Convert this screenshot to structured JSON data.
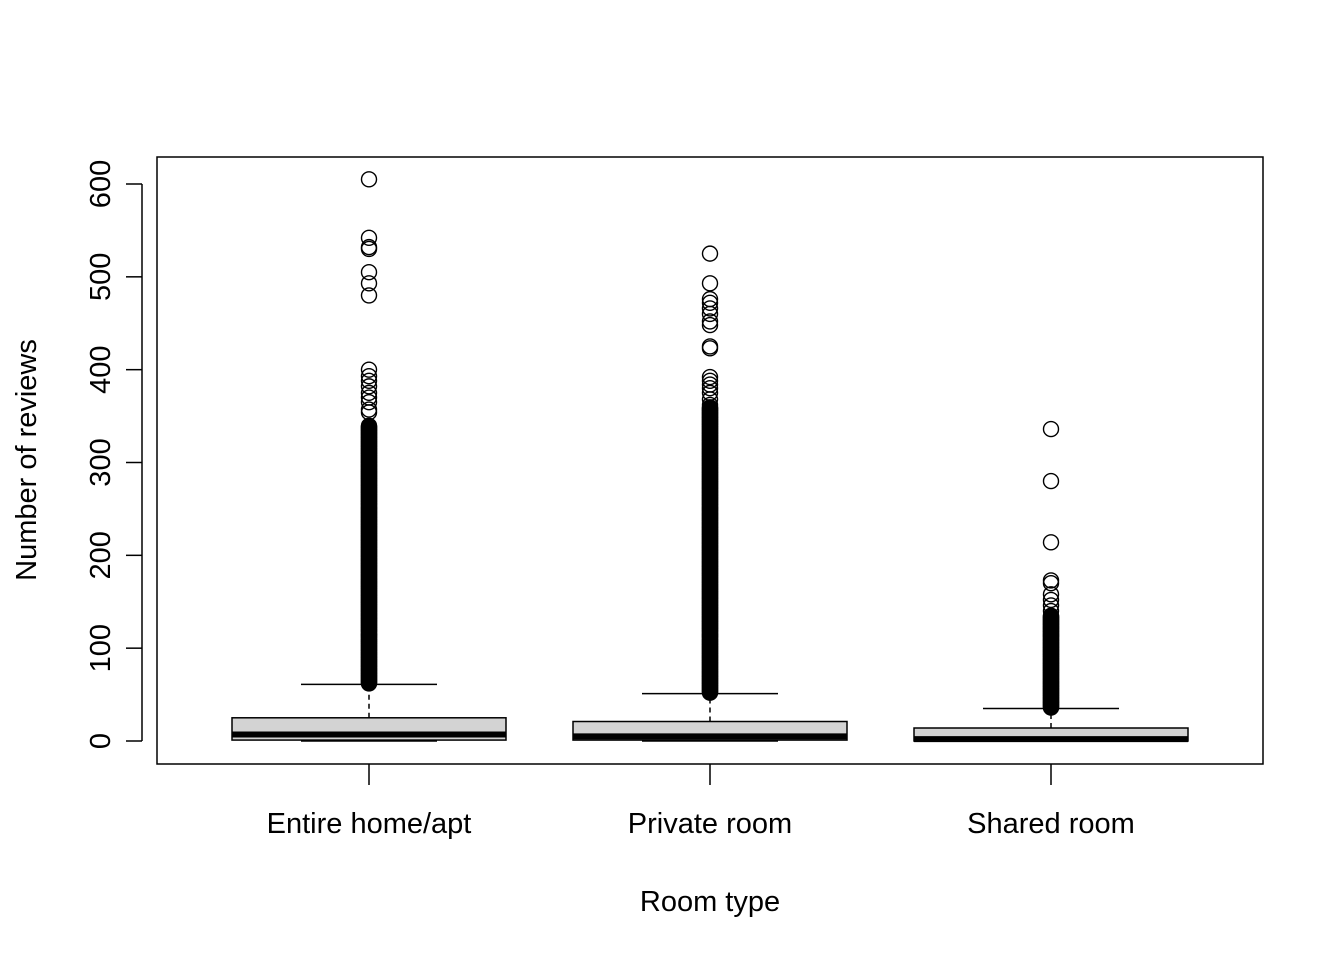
{
  "chart_data": {
    "type": "boxplot",
    "title": "",
    "xlabel": "Room type",
    "ylabel": "Number of reviews",
    "ylim": [
      -25,
      630
    ],
    "yticks": [
      0,
      100,
      200,
      300,
      400,
      500,
      600
    ],
    "ytick_labels": [
      "0",
      "100",
      "200",
      "300",
      "400",
      "500",
      "600"
    ],
    "grid": false,
    "categories": [
      "Entire home/apt",
      "Private room",
      "Shared room"
    ],
    "boxes": [
      {
        "category": "Entire home/apt",
        "min": 0,
        "q1": 1,
        "median": 7,
        "q3": 25,
        "max": 61,
        "outlier_range": [
          62,
          340
        ],
        "outliers": [
          605,
          542,
          532,
          530,
          505,
          493,
          480,
          400,
          393,
          388,
          382,
          375,
          370,
          365,
          357,
          354
        ]
      },
      {
        "category": "Private room",
        "min": 0,
        "q1": 1,
        "median": 5,
        "q3": 21,
        "max": 51,
        "outlier_range": [
          52,
          360
        ],
        "outliers": [
          525,
          493,
          476,
          472,
          466,
          460,
          452,
          448,
          425,
          423,
          392,
          388,
          384,
          380,
          375,
          368,
          362
        ]
      },
      {
        "category": "Shared room",
        "min": 0,
        "q1": 0,
        "median": 2,
        "q3": 14,
        "max": 35,
        "outlier_range": [
          36,
          135
        ],
        "outliers": [
          336,
          280,
          214,
          173,
          170,
          158,
          152,
          146,
          140
        ]
      }
    ]
  }
}
